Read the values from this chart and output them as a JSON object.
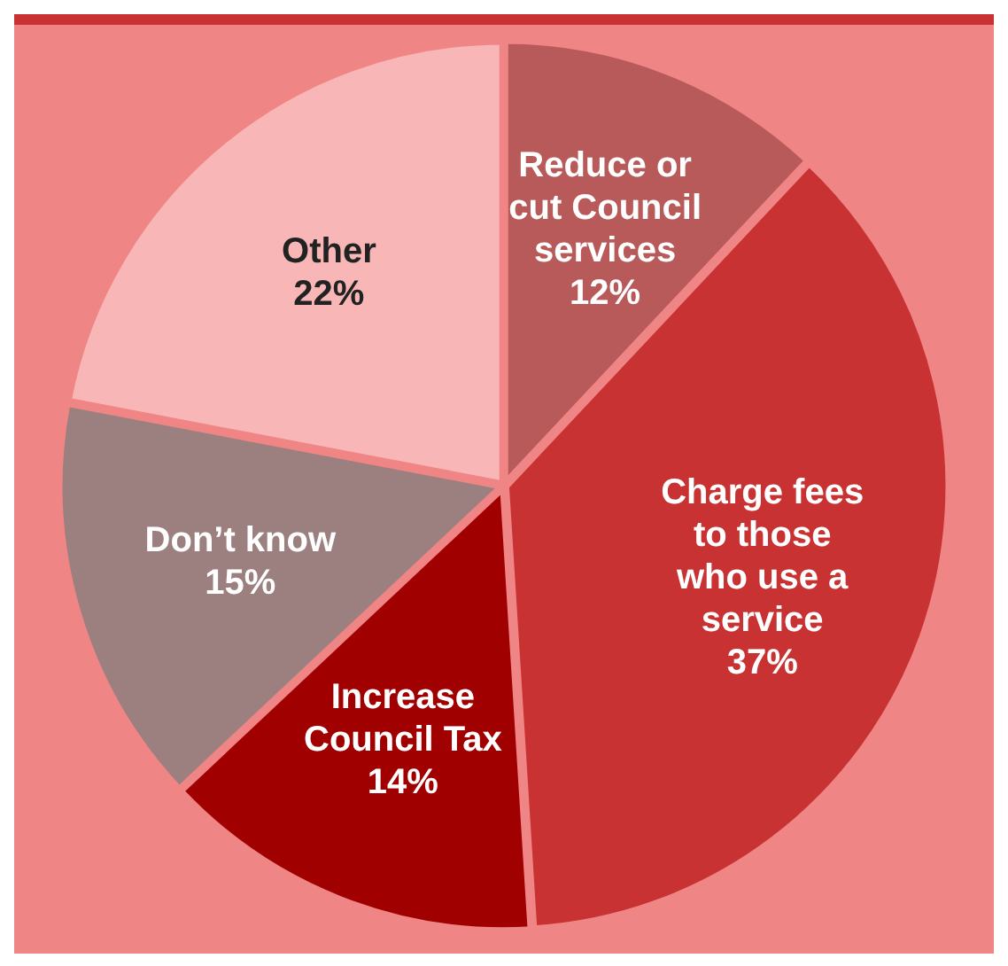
{
  "chart_data": {
    "type": "pie",
    "categories": [
      "Reduce or cut Council services",
      "Charge fees to those who use a service",
      "Increase Council Tax",
      "Don’t know",
      "Other"
    ],
    "values": [
      12,
      37,
      14,
      15,
      22
    ],
    "value_labels": [
      "12%",
      "37%",
      "14%",
      "15%",
      "22%"
    ],
    "colors": [
      "#b85a5a",
      "#c83232",
      "#a00000",
      "#9c7f7f",
      "#f9b6b6"
    ],
    "legend": false
  }
}
